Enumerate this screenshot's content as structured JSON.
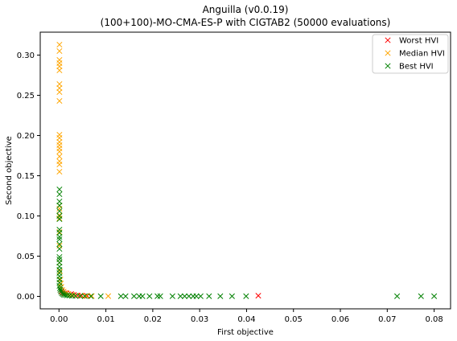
{
  "chart_data": {
    "type": "scatter",
    "title": "Anguilla (v0.0.19)",
    "subtitle": "(100+100)-MO-CMA-ES-P with CIGTAB2 (50000 evaluations)",
    "xlabel": "First objective",
    "ylabel": "Second objective",
    "xlim": [
      -0.004,
      0.0835
    ],
    "ylim": [
      -0.0155,
      0.3285
    ],
    "xticks": [
      0.0,
      0.01,
      0.02,
      0.03,
      0.04,
      0.05,
      0.06,
      0.07,
      0.08
    ],
    "xtick_labels": [
      "0.00",
      "0.01",
      "0.02",
      "0.03",
      "0.04",
      "0.05",
      "0.06",
      "0.07",
      "0.08"
    ],
    "yticks": [
      0.0,
      0.05,
      0.1,
      0.15,
      0.2,
      0.25,
      0.3
    ],
    "ytick_labels": [
      "0.00",
      "0.05",
      "0.10",
      "0.15",
      "0.20",
      "0.25",
      "0.30"
    ],
    "grid": false,
    "legend": "top-right",
    "marker": "x",
    "series": [
      {
        "name": "Worst HVI",
        "color": "#ff0000",
        "points": [
          [
            0.0003,
            0.008
          ],
          [
            0.0006,
            0.006
          ],
          [
            0.0009,
            0.005
          ],
          [
            0.0012,
            0.004
          ],
          [
            0.0016,
            0.004
          ],
          [
            0.002,
            0.003
          ],
          [
            0.0026,
            0.003
          ],
          [
            0.0032,
            0.002
          ],
          [
            0.004,
            0.001
          ],
          [
            0.0048,
            0.001
          ],
          [
            0.006,
            0.0006
          ],
          [
            0.0425,
            0.0008
          ]
        ]
      },
      {
        "name": "Median HVI",
        "color": "#ffa500",
        "points": [
          [
            0.0001,
            0.313
          ],
          [
            0.0001,
            0.305
          ],
          [
            0.0001,
            0.294
          ],
          [
            0.0001,
            0.29
          ],
          [
            0.0001,
            0.286
          ],
          [
            0.0001,
            0.281
          ],
          [
            0.0001,
            0.264
          ],
          [
            0.0001,
            0.259
          ],
          [
            0.0001,
            0.254
          ],
          [
            0.0001,
            0.243
          ],
          [
            0.0001,
            0.201
          ],
          [
            0.0001,
            0.197
          ],
          [
            0.0001,
            0.192
          ],
          [
            0.0001,
            0.188
          ],
          [
            0.0001,
            0.184
          ],
          [
            0.0001,
            0.18
          ],
          [
            0.0001,
            0.174
          ],
          [
            0.0001,
            0.168
          ],
          [
            0.0001,
            0.164
          ],
          [
            0.0001,
            0.155
          ],
          [
            0.0001,
            0.113
          ],
          [
            0.0001,
            0.109
          ],
          [
            0.0001,
            0.101
          ],
          [
            0.0001,
            0.097
          ],
          [
            0.0001,
            0.08
          ],
          [
            0.0001,
            0.063
          ],
          [
            0.0001,
            0.042
          ],
          [
            0.0002,
            0.031
          ],
          [
            0.0003,
            0.021
          ],
          [
            0.0004,
            0.016
          ],
          [
            0.0005,
            0.012
          ],
          [
            0.0007,
            0.008
          ],
          [
            0.001,
            0.006
          ],
          [
            0.0015,
            0.004
          ],
          [
            0.002,
            0.003
          ],
          [
            0.0028,
            0.002
          ],
          [
            0.0036,
            0.001
          ],
          [
            0.0046,
            0.0008
          ],
          [
            0.0058,
            0.0005
          ],
          [
            0.007,
            0.0004
          ],
          [
            0.0105,
            0.0003
          ]
        ]
      },
      {
        "name": "Best HVI",
        "color": "#008000",
        "points": [
          [
            0.0001,
            0.133
          ],
          [
            0.0001,
            0.127
          ],
          [
            0.0001,
            0.118
          ],
          [
            0.0001,
            0.113
          ],
          [
            0.0001,
            0.106
          ],
          [
            0.0001,
            0.1
          ],
          [
            0.0001,
            0.096
          ],
          [
            0.0001,
            0.083
          ],
          [
            0.0001,
            0.079
          ],
          [
            0.0001,
            0.074
          ],
          [
            0.0001,
            0.071
          ],
          [
            0.0001,
            0.065
          ],
          [
            0.0001,
            0.059
          ],
          [
            0.0001,
            0.049
          ],
          [
            0.0001,
            0.046
          ],
          [
            0.0001,
            0.042
          ],
          [
            0.0001,
            0.037
          ],
          [
            0.0001,
            0.033
          ],
          [
            0.0001,
            0.029
          ],
          [
            0.0001,
            0.025
          ],
          [
            0.0001,
            0.021
          ],
          [
            0.0001,
            0.017
          ],
          [
            0.0001,
            0.013
          ],
          [
            0.0002,
            0.01
          ],
          [
            0.0003,
            0.008
          ],
          [
            0.0004,
            0.006
          ],
          [
            0.0006,
            0.004
          ],
          [
            0.0008,
            0.003
          ],
          [
            0.001,
            0.002
          ],
          [
            0.0013,
            0.0016
          ],
          [
            0.0017,
            0.0012
          ],
          [
            0.0022,
            0.0009
          ],
          [
            0.0028,
            0.0007
          ],
          [
            0.0035,
            0.0005
          ],
          [
            0.0045,
            0.0004
          ],
          [
            0.0055,
            0.0003
          ],
          [
            0.0068,
            0.0002
          ],
          [
            0.0089,
            0.0002
          ],
          [
            0.0132,
            0.0002
          ],
          [
            0.0142,
            0.0002
          ],
          [
            0.016,
            0.0002
          ],
          [
            0.0171,
            0.0002
          ],
          [
            0.0178,
            0.0002
          ],
          [
            0.0193,
            0.0002
          ],
          [
            0.021,
            0.0002
          ],
          [
            0.0216,
            0.0002
          ],
          [
            0.0242,
            0.0002
          ],
          [
            0.0259,
            0.0002
          ],
          [
            0.0268,
            0.0002
          ],
          [
            0.0277,
            0.0002
          ],
          [
            0.0286,
            0.0002
          ],
          [
            0.0293,
            0.0002
          ],
          [
            0.0302,
            0.0002
          ],
          [
            0.032,
            0.0002
          ],
          [
            0.0344,
            0.0002
          ],
          [
            0.0369,
            0.0002
          ],
          [
            0.0399,
            0.0002
          ],
          [
            0.0721,
            0.0002
          ],
          [
            0.0772,
            0.0002
          ],
          [
            0.08,
            0.0002
          ]
        ]
      }
    ]
  }
}
